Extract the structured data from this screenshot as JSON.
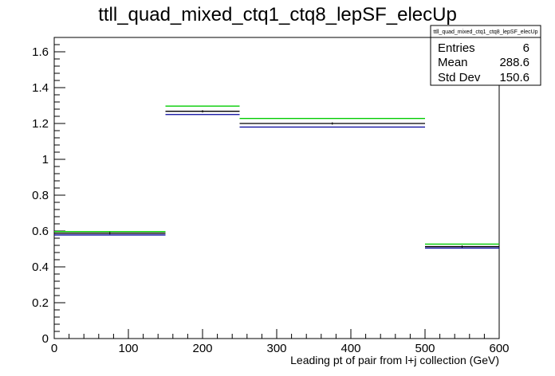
{
  "chart_data": {
    "type": "line",
    "title": "ttll_quad_mixed_ctq1_ctq8_lepSF_elecUp",
    "xlabel": "Leading pt of pair from l+j collection (GeV)",
    "ylabel": "",
    "xlim": [
      0,
      600
    ],
    "ylim": [
      0,
      1.68
    ],
    "x_ticks": [
      0,
      100,
      200,
      300,
      400,
      500,
      600
    ],
    "y_ticks": [
      0,
      0.2,
      0.4,
      0.6,
      0.8,
      1,
      1.2,
      1.4,
      1.6
    ],
    "x_tick_labels": [
      "0",
      "100",
      "200",
      "300",
      "400",
      "500",
      "600"
    ],
    "y_tick_labels": [
      "0",
      "0.2",
      "0.4",
      "0.6",
      "0.8",
      "1",
      "1.2",
      "1.4",
      "1.6"
    ],
    "bin_edges": [
      0,
      150,
      250,
      500,
      600
    ],
    "series": [
      {
        "color": "#00cc00",
        "values": [
          0.597,
          1.297,
          1.228,
          0.527
        ]
      },
      {
        "color": "#000000",
        "values": [
          0.588,
          1.268,
          1.2,
          0.513
        ]
      },
      {
        "color": "#000099",
        "values": [
          0.578,
          1.25,
          1.18,
          0.505
        ]
      }
    ],
    "grid": false,
    "stats_box": {
      "title": "ttll_quad_mixed_ctq1_ctq8_lepSF_elecUp",
      "entries_label": "Entries",
      "entries_value": "6",
      "mean_label": "Mean",
      "mean_value": "288.6",
      "stddev_label": "Std Dev",
      "stddev_value": "150.6",
      "placement": "top-right"
    }
  }
}
